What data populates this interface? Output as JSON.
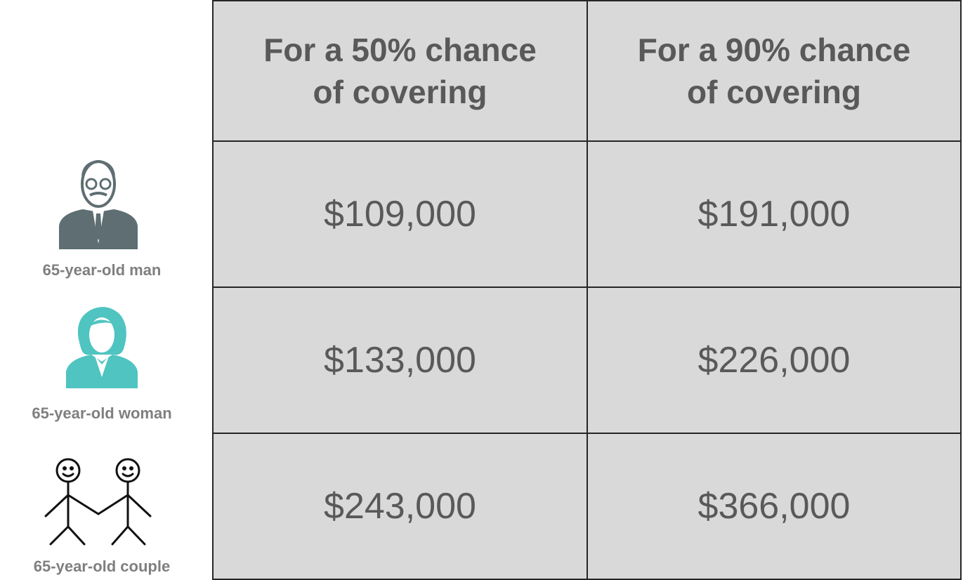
{
  "table": {
    "header": [
      {
        "lines": [
          "For a 50% chance",
          "of covering"
        ]
      },
      {
        "lines": [
          "For a 90% chance",
          "of covering"
        ]
      }
    ],
    "rows": [
      {
        "label": "65-year-old man",
        "cells": [
          "$109,000",
          "$191,000"
        ]
      },
      {
        "label": "65-year-old woman",
        "cells": [
          "$133,000",
          "$226,000"
        ]
      },
      {
        "label": "65-year-old couple",
        "cells": [
          "$243,000",
          "$366,000"
        ]
      }
    ]
  }
}
